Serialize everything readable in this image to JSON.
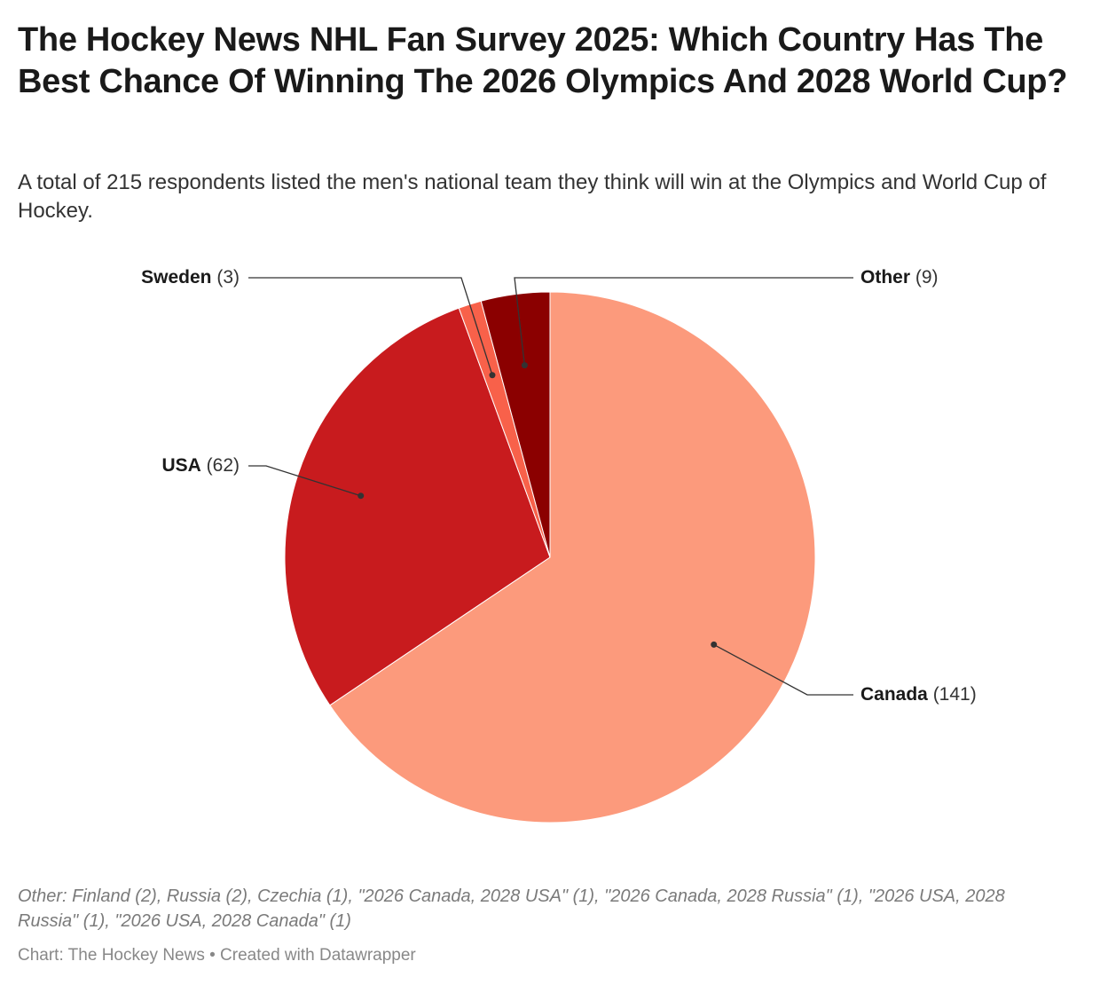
{
  "title": "The Hockey News NHL Fan Survey 2025: Which Country Has The Best Chance Of Winning The 2026 Olympics And 2028 World Cup?",
  "subtitle": "A total of 215 respondents listed the men's national team they think will win at the Olympics and World Cup of Hockey.",
  "note": "Other: Finland (2), Russia (2), Czechia (1), \"2026 Canada, 2028 USA\" (1), \"2026 Canada, 2028 Russia\" (1), \"2026 USA, 2028 Russia\" (1), \"2026 USA, 2028 Canada\" (1)",
  "credit": "Chart: The Hockey News • Created with Datawrapper",
  "chart_data": {
    "type": "pie",
    "total": 215,
    "slices": [
      {
        "name": "Canada",
        "value": 141,
        "value_label": "(141)",
        "color": "#fc9a7c"
      },
      {
        "name": "USA",
        "value": 62,
        "value_label": "(62)",
        "color": "#c81b1e"
      },
      {
        "name": "Sweden",
        "value": 3,
        "value_label": "(3)",
        "color": "#f8614a"
      },
      {
        "name": "Other",
        "value": 9,
        "value_label": "(9)",
        "color": "#8b0000"
      }
    ]
  }
}
